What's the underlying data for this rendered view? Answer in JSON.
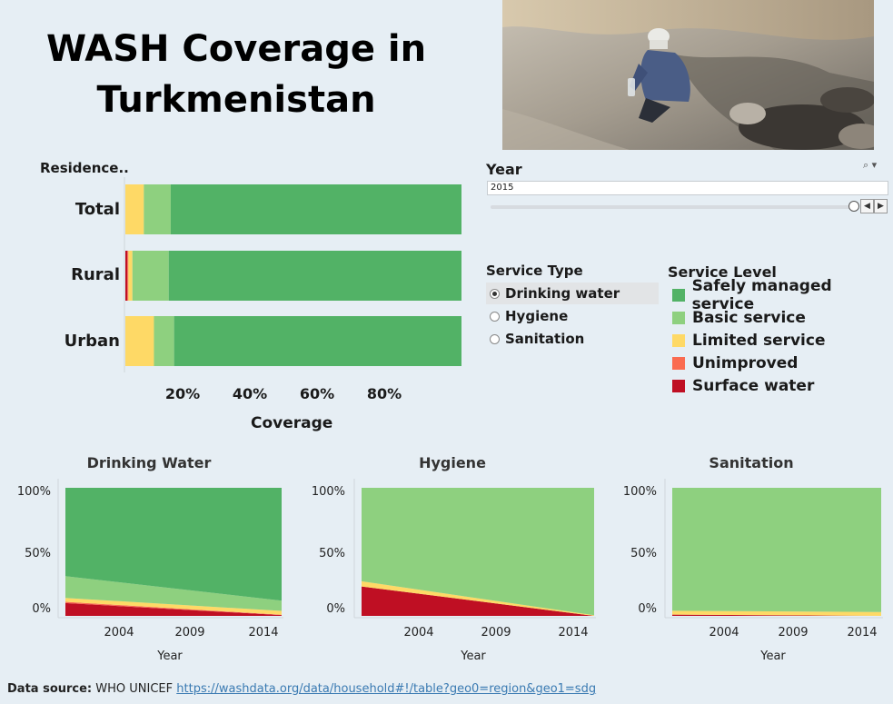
{
  "title": "WASH Coverage in Turkmenistan",
  "photo": {
    "description_icon": "photo-person-collecting-water"
  },
  "colors": {
    "safely_managed": "#52b266",
    "basic": "#8ed07f",
    "limited": "#fed966",
    "unimproved": "#fa6b50",
    "surface_water": "#bf0f23"
  },
  "filters": {
    "year": {
      "title": "Year",
      "value": "2015"
    },
    "service_type": {
      "title": "Service Type",
      "options": [
        "Drinking water",
        "Hygiene",
        "Sanitation"
      ],
      "selected": "Drinking water"
    },
    "service_level": {
      "title": "Service Level",
      "items": [
        {
          "label": "Safely managed service",
          "color": "#52b266"
        },
        {
          "label": "Basic service",
          "color": "#8ed07f"
        },
        {
          "label": "Limited service",
          "color": "#fed966"
        },
        {
          "label": "Unimproved",
          "color": "#fa6b50"
        },
        {
          "label": "Surface water",
          "color": "#bf0f23"
        }
      ]
    }
  },
  "chart_data": [
    {
      "type": "bar",
      "orientation": "horizontal",
      "stacked": true,
      "ylabel": "Residence..",
      "xlabel": "Coverage",
      "categories": [
        "Total",
        "Rural",
        "Urban"
      ],
      "x_ticks": [
        "20%",
        "40%",
        "60%",
        "80%"
      ],
      "xlim": [
        0,
        100
      ],
      "series": [
        {
          "name": "Surface water",
          "color": "#bf0f23",
          "values": [
            0,
            0.6,
            0
          ]
        },
        {
          "name": "Unimproved",
          "color": "#fa6b50",
          "values": [
            0,
            0.3,
            0
          ]
        },
        {
          "name": "Limited service",
          "color": "#fed966",
          "values": [
            5.5,
            1.2,
            8.5
          ]
        },
        {
          "name": "Basic service",
          "color": "#8ed07f",
          "values": [
            8,
            10.8,
            6
          ]
        },
        {
          "name": "Safely managed service",
          "color": "#52b266",
          "values": [
            86.5,
            87.1,
            85.5
          ]
        }
      ]
    },
    {
      "type": "area",
      "stacked": true,
      "title": "Drinking Water",
      "xlabel": "Year",
      "x": [
        2000,
        2015
      ],
      "xlim": [
        2000,
        2015
      ],
      "x_ticks": [
        "2004",
        "2009",
        "2014"
      ],
      "ylim": [
        0,
        100
      ],
      "y_ticks": [
        "100%",
        "50%",
        "0%"
      ],
      "series": [
        {
          "name": "Surface water",
          "color": "#bf0f23",
          "values": [
            10,
            0.6
          ]
        },
        {
          "name": "Unimproved",
          "color": "#fa6b50",
          "values": [
            1,
            0.3
          ]
        },
        {
          "name": "Limited service",
          "color": "#fed966",
          "values": [
            3,
            3
          ]
        },
        {
          "name": "Basic service",
          "color": "#8ed07f",
          "values": [
            17,
            8
          ]
        },
        {
          "name": "Safely managed service",
          "color": "#52b266",
          "values": [
            69,
            88.1
          ]
        }
      ]
    },
    {
      "type": "area",
      "stacked": true,
      "title": "Hygiene",
      "xlabel": "Year",
      "x": [
        2000,
        2015
      ],
      "xlim": [
        2000,
        2015
      ],
      "x_ticks": [
        "2004",
        "2009",
        "2014"
      ],
      "ylim": [
        0,
        100
      ],
      "y_ticks": [
        "100%",
        "50%",
        "0%"
      ],
      "series": [
        {
          "name": "Surface water",
          "color": "#bf0f23",
          "values": [
            23,
            0
          ]
        },
        {
          "name": "Limited service",
          "color": "#fed966",
          "values": [
            4,
            0.5
          ]
        },
        {
          "name": "Basic service",
          "color": "#8ed07f",
          "values": [
            73,
            99.5
          ]
        }
      ]
    },
    {
      "type": "area",
      "stacked": true,
      "title": "Sanitation",
      "xlabel": "Year",
      "x": [
        2000,
        2015
      ],
      "xlim": [
        2000,
        2015
      ],
      "x_ticks": [
        "2004",
        "2009",
        "2014"
      ],
      "ylim": [
        0,
        100
      ],
      "y_ticks": [
        "100%",
        "50%",
        "0%"
      ],
      "series": [
        {
          "name": "Surface water",
          "color": "#bf0f23",
          "values": [
            1,
            0
          ]
        },
        {
          "name": "Limited service",
          "color": "#fed966",
          "values": [
            3,
            3
          ]
        },
        {
          "name": "Basic service",
          "color": "#8ed07f",
          "values": [
            96,
            97
          ]
        }
      ]
    }
  ],
  "source": {
    "label": "Data source:",
    "text": "WHO UNICEF",
    "link": "https://washdata.org/data/household#!/table?geo0=region&geo1=sdg"
  }
}
